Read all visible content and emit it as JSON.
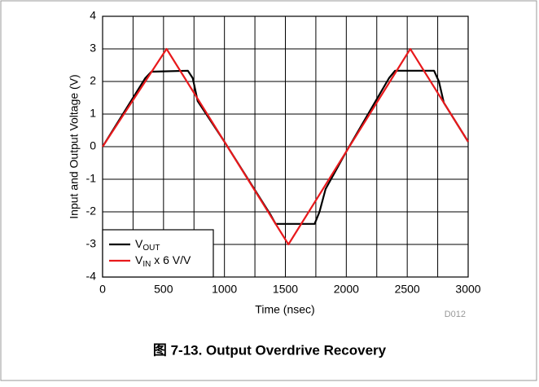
{
  "chart_data": {
    "type": "line",
    "caption": "图 7-13. Output Overdrive Recovery",
    "code": "D012",
    "xlabel": "Time (nsec)",
    "ylabel": "Input and Output Voltage (V)",
    "xlim": [
      0,
      3000
    ],
    "ylim": [
      -4,
      4
    ],
    "xticks": [
      0,
      500,
      1000,
      1500,
      2000,
      2500,
      3000
    ],
    "xminor": [
      250,
      750,
      1250,
      1750,
      2250,
      2750
    ],
    "yticks": [
      -4,
      -3,
      -2,
      -1,
      0,
      1,
      2,
      3,
      4
    ],
    "grid": true,
    "legend": "lower left",
    "series": [
      {
        "name": "VOUT",
        "subscript": "OUT",
        "color": "#000000",
        "x": [
          0,
          350,
          400,
          700,
          740,
          780,
          1000,
          1380,
          1420,
          1740,
          1780,
          1830,
          2000,
          2350,
          2400,
          2720,
          2760,
          2800,
          3000
        ],
        "values": [
          0,
          2.1,
          2.3,
          2.33,
          2.1,
          1.4,
          0.15,
          -2.1,
          -2.37,
          -2.37,
          -2.0,
          -1.3,
          -0.15,
          2.1,
          2.33,
          2.33,
          2.0,
          1.35,
          0.15
        ]
      },
      {
        "name": "VIN x 6 V/V",
        "subscript": "IN",
        "color": "#e8191c",
        "x": [
          0,
          525,
          1525,
          2525,
          3000
        ],
        "values": [
          0,
          3,
          -3,
          3,
          0.15
        ]
      }
    ]
  }
}
